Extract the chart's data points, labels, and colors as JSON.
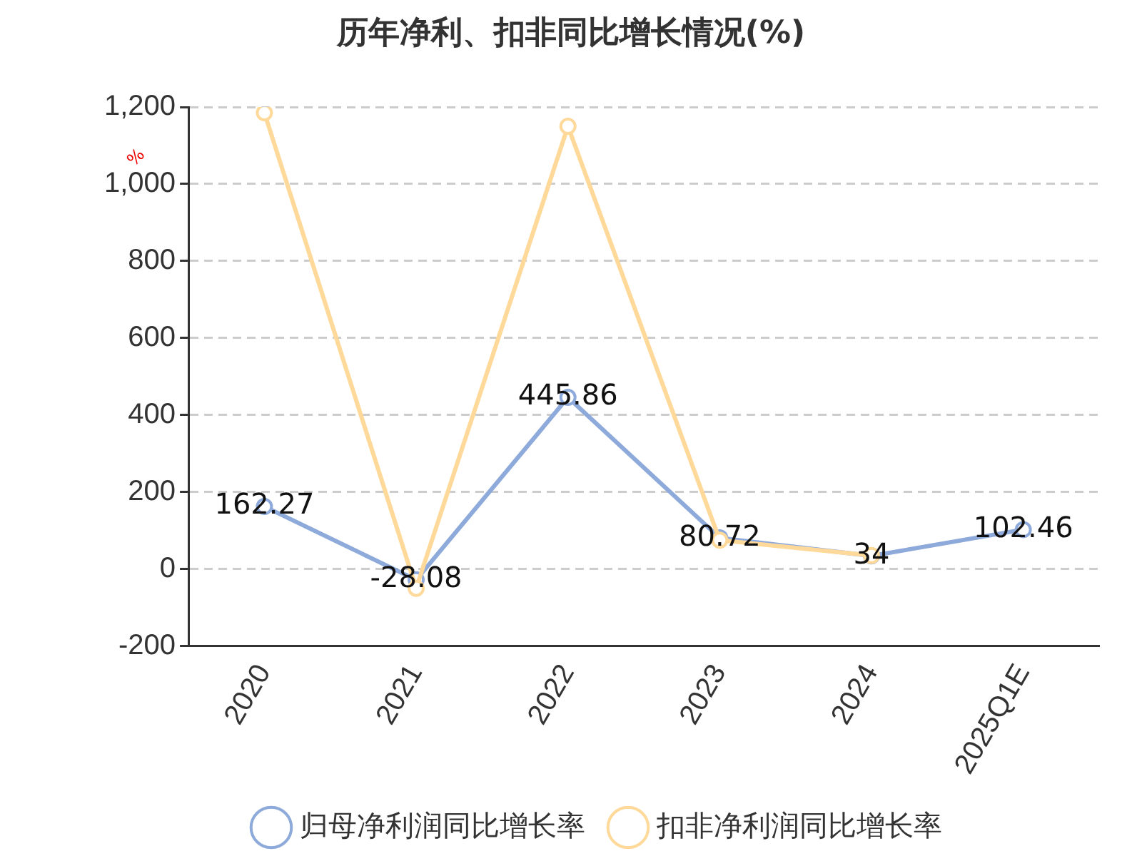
{
  "chart_data": {
    "type": "line",
    "title": "历年净利、扣非同比增长情况(%)",
    "ylabel": "%",
    "categories": [
      "2020",
      "2021",
      "2022",
      "2023",
      "2024",
      "2025Q1E"
    ],
    "series": [
      {
        "name": "归母净利润同比增长率",
        "color": "#8eaadb",
        "values": [
          162.27,
          -28.08,
          445.86,
          80.72,
          34,
          102.46
        ],
        "value_labels": [
          "162.27",
          "-28.08",
          "445.86",
          "80.72",
          "34",
          "102.46"
        ]
      },
      {
        "name": "扣非净利润同比增长率",
        "color": "#ffd999",
        "values": [
          1185,
          -50,
          1150,
          75,
          35,
          null
        ]
      }
    ],
    "ylim": [
      -200,
      1200
    ],
    "yticks": [
      -200,
      0,
      200,
      400,
      600,
      800,
      {
        "value": 1000,
        "label": "1,000"
      },
      {
        "value": 1200,
        "label": "1,200"
      }
    ],
    "grid": "y",
    "legend": "bottom",
    "marker": "circle",
    "line_style": "solid"
  }
}
